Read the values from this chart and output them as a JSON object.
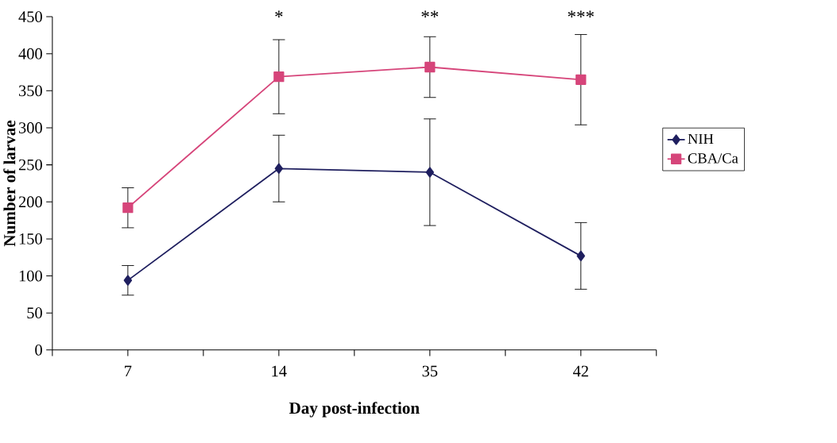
{
  "chart_data": {
    "type": "line",
    "xlabel": "Day post-infection",
    "ylabel": "Number of larvae",
    "categories": [
      "7",
      "14",
      "35",
      "42"
    ],
    "ylim": [
      0,
      450
    ],
    "yticks": [
      0,
      50,
      100,
      150,
      200,
      250,
      300,
      350,
      400,
      450
    ],
    "legend": "right",
    "grid": false,
    "series": [
      {
        "name": "NIH",
        "color": "#1f1f5f",
        "marker": "diamond",
        "values": [
          94,
          245,
          240,
          127
        ],
        "errors": [
          20,
          45,
          72,
          45
        ]
      },
      {
        "name": "CBA/Ca",
        "color": "#d6457a",
        "marker": "square",
        "values": [
          192,
          369,
          382,
          365
        ],
        "errors": [
          27,
          50,
          41,
          61
        ]
      }
    ],
    "annotations": [
      "*",
      "**",
      "***"
    ]
  }
}
